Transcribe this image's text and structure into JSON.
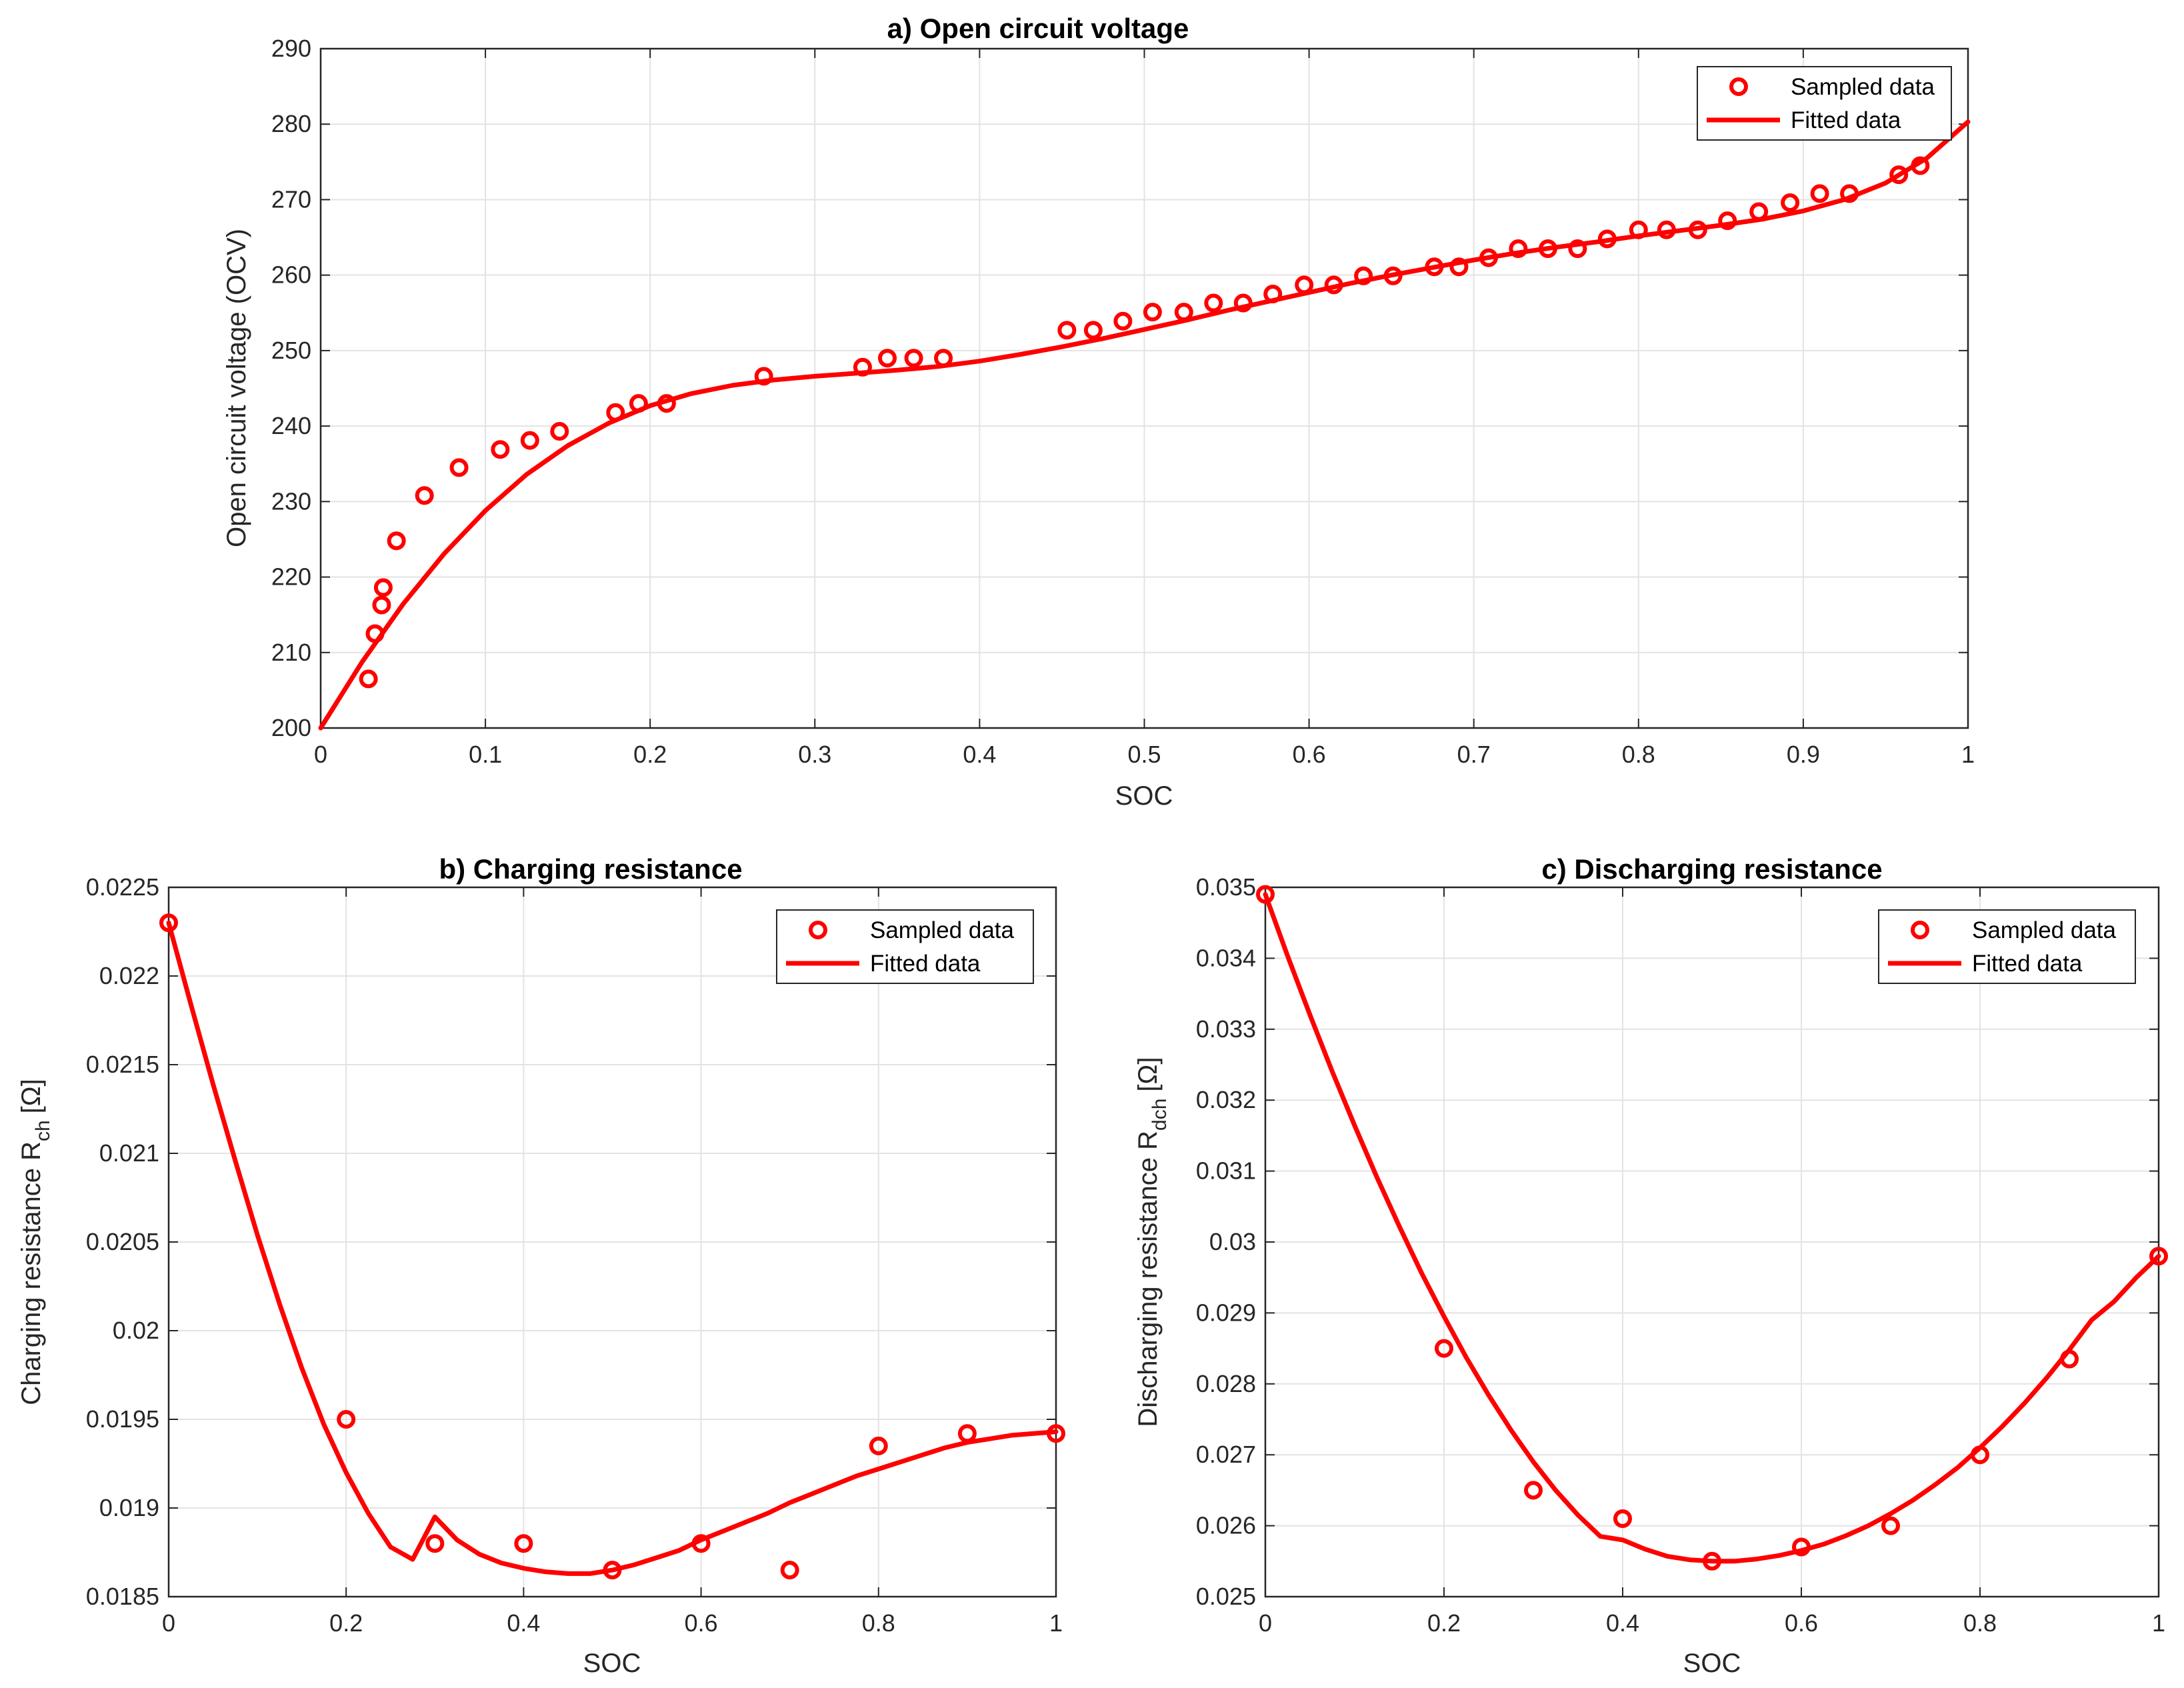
{
  "colors": {
    "series": "#ff0000",
    "grid": "#e3e3e3",
    "axis": "#262626",
    "background": "#ffffff"
  },
  "chart_data": [
    {
      "type": "scatter",
      "title": "a) Open circuit voltage",
      "xlabel": "SOC",
      "ylabel": "Open circuit voltage (OCV)",
      "xlim": [
        0,
        1
      ],
      "ylim": [
        200,
        290
      ],
      "xticks": [
        0,
        0.1,
        0.2,
        0.3,
        0.4,
        0.5,
        0.6,
        0.7,
        0.8,
        0.9,
        1
      ],
      "xtick_labels": [
        "0",
        "0.1",
        "0.2",
        "0.3",
        "0.4",
        "0.5",
        "0.6",
        "0.7",
        "0.8",
        "0.9",
        "1"
      ],
      "yticks": [
        200,
        210,
        220,
        230,
        240,
        250,
        260,
        270,
        280,
        290
      ],
      "ytick_labels": [
        "200",
        "210",
        "220",
        "230",
        "240",
        "250",
        "260",
        "270",
        "280",
        "290"
      ],
      "grid": true,
      "legend_position": "top-right",
      "series": [
        {
          "name": "Sampled data",
          "style": "markers",
          "points": [
            [
              0.029,
              206.5
            ],
            [
              0.033,
              212.5
            ],
            [
              0.037,
              216.3
            ],
            [
              0.038,
              218.6
            ],
            [
              0.046,
              224.8
            ],
            [
              0.063,
              230.8
            ],
            [
              0.084,
              234.5
            ],
            [
              0.109,
              236.9
            ],
            [
              0.127,
              238.1
            ],
            [
              0.145,
              239.3
            ],
            [
              0.179,
              241.8
            ],
            [
              0.193,
              243.0
            ],
            [
              0.21,
              243.0
            ],
            [
              0.269,
              246.6
            ],
            [
              0.329,
              247.8
            ],
            [
              0.344,
              249.0
            ],
            [
              0.36,
              249.0
            ],
            [
              0.378,
              249.0
            ],
            [
              0.453,
              252.7
            ],
            [
              0.469,
              252.7
            ],
            [
              0.487,
              253.9
            ],
            [
              0.505,
              255.1
            ],
            [
              0.524,
              255.1
            ],
            [
              0.542,
              256.3
            ],
            [
              0.56,
              256.3
            ],
            [
              0.578,
              257.5
            ],
            [
              0.597,
              258.7
            ],
            [
              0.615,
              258.7
            ],
            [
              0.633,
              259.9
            ],
            [
              0.651,
              259.9
            ],
            [
              0.676,
              261.1
            ],
            [
              0.691,
              261.1
            ],
            [
              0.709,
              262.3
            ],
            [
              0.727,
              263.5
            ],
            [
              0.745,
              263.5
            ],
            [
              0.763,
              263.5
            ],
            [
              0.781,
              264.8
            ],
            [
              0.8,
              266.0
            ],
            [
              0.817,
              266.0
            ],
            [
              0.836,
              266.0
            ],
            [
              0.854,
              267.2
            ],
            [
              0.873,
              268.4
            ],
            [
              0.892,
              269.6
            ],
            [
              0.91,
              270.8
            ],
            [
              0.928,
              270.8
            ],
            [
              0.958,
              273.3
            ],
            [
              0.971,
              274.5
            ]
          ]
        },
        {
          "name": "Fitted data",
          "style": "line",
          "points": [
            [
              0,
              200.0
            ],
            [
              0.025,
              208.7
            ],
            [
              0.05,
              216.4
            ],
            [
              0.075,
              223.1
            ],
            [
              0.1,
              228.8
            ],
            [
              0.125,
              233.6
            ],
            [
              0.15,
              237.4
            ],
            [
              0.175,
              240.4
            ],
            [
              0.2,
              242.7
            ],
            [
              0.225,
              244.3
            ],
            [
              0.25,
              245.4
            ],
            [
              0.275,
              246.1
            ],
            [
              0.3,
              246.6
            ],
            [
              0.325,
              247.0
            ],
            [
              0.35,
              247.4
            ],
            [
              0.375,
              247.9
            ],
            [
              0.4,
              248.6
            ],
            [
              0.425,
              249.5
            ],
            [
              0.45,
              250.5
            ],
            [
              0.475,
              251.6
            ],
            [
              0.5,
              252.8
            ],
            [
              0.525,
              254.0
            ],
            [
              0.55,
              255.3
            ],
            [
              0.575,
              256.5
            ],
            [
              0.6,
              257.7
            ],
            [
              0.625,
              258.9
            ],
            [
              0.65,
              260.0
            ],
            [
              0.675,
              261.0
            ],
            [
              0.7,
              262.0
            ],
            [
              0.725,
              262.9
            ],
            [
              0.75,
              263.7
            ],
            [
              0.775,
              264.4
            ],
            [
              0.8,
              265.2
            ],
            [
              0.825,
              265.9
            ],
            [
              0.85,
              266.6
            ],
            [
              0.875,
              267.4
            ],
            [
              0.9,
              268.5
            ],
            [
              0.925,
              270.0
            ],
            [
              0.95,
              272.2
            ],
            [
              0.975,
              275.5
            ],
            [
              1.0,
              280.3
            ]
          ]
        }
      ]
    },
    {
      "type": "scatter",
      "title": "b) Charging resistance",
      "xlabel": "SOC",
      "ylabel_main": "Charging resistance R",
      "ylabel_sub": "ch",
      "ylabel_unit": "[Ω]",
      "xlim": [
        0,
        1
      ],
      "ylim": [
        0.0185,
        0.0225
      ],
      "xticks": [
        0,
        0.2,
        0.4,
        0.6,
        0.8,
        1
      ],
      "xtick_labels": [
        "0",
        "0.2",
        "0.4",
        "0.6",
        "0.8",
        "1"
      ],
      "yticks": [
        0.0185,
        0.019,
        0.0195,
        0.02,
        0.0205,
        0.021,
        0.0215,
        0.022,
        0.0225
      ],
      "ytick_labels": [
        "0.0185",
        "0.019",
        "0.0195",
        "0.02",
        "0.0205",
        "0.021",
        "0.0215",
        "0.022",
        "0.0225"
      ],
      "grid": true,
      "legend_position": "top-right",
      "series": [
        {
          "name": "Sampled data",
          "style": "markers",
          "points": [
            [
              0,
              0.0223
            ],
            [
              0.2,
              0.0195
            ],
            [
              0.3,
              0.0188
            ],
            [
              0.4,
              0.0188
            ],
            [
              0.5,
              0.01865
            ],
            [
              0.6,
              0.0188
            ],
            [
              0.7,
              0.01865
            ],
            [
              0.8,
              0.01935
            ],
            [
              0.9,
              0.01942
            ],
            [
              1.0,
              0.01942
            ]
          ]
        },
        {
          "name": "Fitted data",
          "style": "line",
          "points": [
            [
              0,
              0.0223
            ],
            [
              0.025,
              0.02184
            ],
            [
              0.05,
              0.02139
            ],
            [
              0.075,
              0.02096
            ],
            [
              0.1,
              0.02054
            ],
            [
              0.125,
              0.02015
            ],
            [
              0.15,
              0.01979
            ],
            [
              0.175,
              0.01947
            ],
            [
              0.2,
              0.0192
            ],
            [
              0.225,
              0.01897
            ],
            [
              0.25,
              0.01878
            ],
            [
              0.275,
              0.01871
            ],
            [
              0.3,
              0.01895
            ],
            [
              0.325,
              0.01882
            ],
            [
              0.35,
              0.01874
            ],
            [
              0.375,
              0.01869
            ],
            [
              0.4,
              0.01866
            ],
            [
              0.425,
              0.01864
            ],
            [
              0.45,
              0.01863
            ],
            [
              0.475,
              0.01863
            ],
            [
              0.5,
              0.01865
            ],
            [
              0.525,
              0.01868
            ],
            [
              0.55,
              0.01872
            ],
            [
              0.575,
              0.01876
            ],
            [
              0.6,
              0.01882
            ],
            [
              0.625,
              0.01887
            ],
            [
              0.65,
              0.01892
            ],
            [
              0.675,
              0.01897
            ],
            [
              0.7,
              0.01903
            ],
            [
              0.725,
              0.01908
            ],
            [
              0.75,
              0.01913
            ],
            [
              0.775,
              0.01918
            ],
            [
              0.8,
              0.01922
            ],
            [
              0.825,
              0.01926
            ],
            [
              0.85,
              0.0193
            ],
            [
              0.875,
              0.01934
            ],
            [
              0.9,
              0.01937
            ],
            [
              0.925,
              0.01939
            ],
            [
              0.95,
              0.01941
            ],
            [
              0.975,
              0.01942
            ],
            [
              1.0,
              0.01943
            ]
          ]
        }
      ]
    },
    {
      "type": "scatter",
      "title": "c) Discharging resistance",
      "xlabel": "SOC",
      "ylabel_main": "Discharging resistance R",
      "ylabel_sub": "dch",
      "ylabel_unit": "[Ω]",
      "xlim": [
        0,
        1
      ],
      "ylim": [
        0.025,
        0.035
      ],
      "xticks": [
        0,
        0.2,
        0.4,
        0.6,
        0.8,
        1
      ],
      "xtick_labels": [
        "0",
        "0.2",
        "0.4",
        "0.6",
        "0.8",
        "1"
      ],
      "yticks": [
        0.025,
        0.026,
        0.027,
        0.028,
        0.029,
        0.03,
        0.031,
        0.032,
        0.033,
        0.034,
        0.035
      ],
      "ytick_labels": [
        "0.025",
        "0.026",
        "0.027",
        "0.028",
        "0.029",
        "0.03",
        "0.031",
        "0.032",
        "0.033",
        "0.034",
        "0.035"
      ],
      "grid": true,
      "legend_position": "top-right",
      "series": [
        {
          "name": "Sampled data",
          "style": "markers",
          "points": [
            [
              0,
              0.0349
            ],
            [
              0.2,
              0.0285
            ],
            [
              0.3,
              0.0265
            ],
            [
              0.4,
              0.0261
            ],
            [
              0.5,
              0.0255
            ],
            [
              0.6,
              0.0257
            ],
            [
              0.7,
              0.026
            ],
            [
              0.8,
              0.027
            ],
            [
              0.9,
              0.02835
            ],
            [
              1.0,
              0.0298
            ]
          ]
        },
        {
          "name": "Fitted data",
          "style": "line",
          "points": [
            [
              0,
              0.0349
            ],
            [
              0.025,
              0.03403
            ],
            [
              0.05,
              0.0332
            ],
            [
              0.075,
              0.0324
            ],
            [
              0.1,
              0.03164
            ],
            [
              0.125,
              0.03091
            ],
            [
              0.15,
              0.03022
            ],
            [
              0.175,
              0.02956
            ],
            [
              0.2,
              0.02895
            ],
            [
              0.225,
              0.02837
            ],
            [
              0.25,
              0.02784
            ],
            [
              0.275,
              0.02735
            ],
            [
              0.3,
              0.0269
            ],
            [
              0.325,
              0.0265
            ],
            [
              0.35,
              0.02615
            ],
            [
              0.375,
              0.02585
            ],
            [
              0.4,
              0.0258
            ],
            [
              0.425,
              0.02567
            ],
            [
              0.45,
              0.02557
            ],
            [
              0.475,
              0.02552
            ],
            [
              0.5,
              0.0255
            ],
            [
              0.525,
              0.0255
            ],
            [
              0.55,
              0.02553
            ],
            [
              0.575,
              0.02558
            ],
            [
              0.6,
              0.02565
            ],
            [
              0.625,
              0.02574
            ],
            [
              0.65,
              0.02586
            ],
            [
              0.675,
              0.026
            ],
            [
              0.7,
              0.02617
            ],
            [
              0.725,
              0.02636
            ],
            [
              0.75,
              0.02658
            ],
            [
              0.775,
              0.02682
            ],
            [
              0.8,
              0.0271
            ],
            [
              0.825,
              0.0274
            ],
            [
              0.85,
              0.02773
            ],
            [
              0.875,
              0.02809
            ],
            [
              0.9,
              0.02848
            ],
            [
              0.925,
              0.0289
            ],
            [
              0.95,
              0.02916
            ],
            [
              0.975,
              0.0295
            ],
            [
              1.0,
              0.0298
            ]
          ]
        }
      ]
    }
  ]
}
